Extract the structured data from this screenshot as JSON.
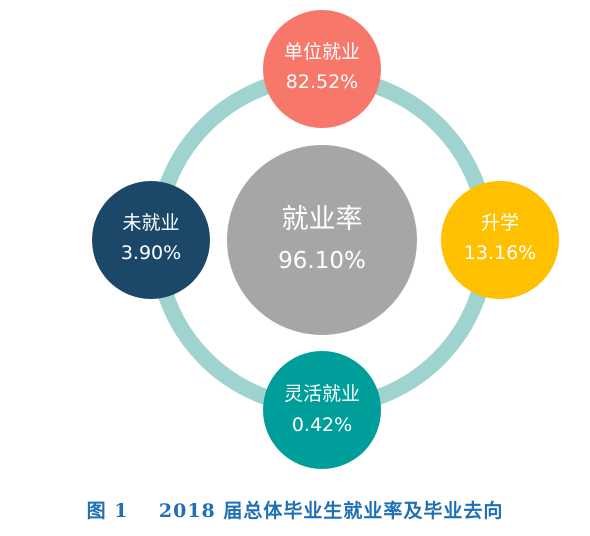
{
  "center": {
    "label": "就业率",
    "value": "96.10%",
    "color": "#a6a6a6"
  },
  "ring_color": "#9fd3d0",
  "nodes": [
    {
      "id": "employed",
      "label": "单位就业",
      "value": "82.52%",
      "color": "#f7786b"
    },
    {
      "id": "further-study",
      "label": "升学",
      "value": "13.16%",
      "color": "#ffc000"
    },
    {
      "id": "flexible",
      "label": "灵活就业",
      "value": "0.42%",
      "color": "#009e9a"
    },
    {
      "id": "unemployed",
      "label": "未就业",
      "value": "3.90%",
      "color": "#1b4869"
    }
  ],
  "caption": "图 1    2018 届总体毕业生就业率及毕业去向"
}
